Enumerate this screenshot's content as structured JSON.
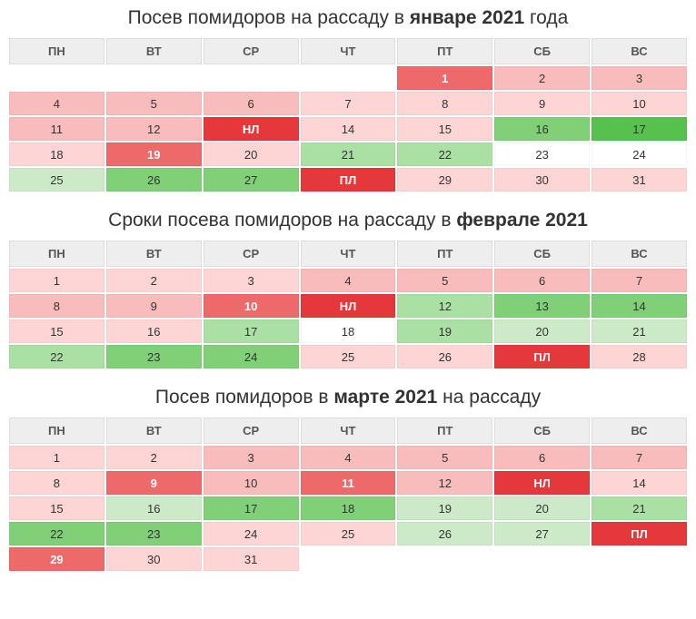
{
  "colors": {
    "header_bg": "#eeeeee",
    "header_text": "#555555",
    "title_text": "#333333",
    "cell_border": "rgba(0,0,0,0.04)"
  },
  "weekdays": [
    "ПН",
    "ВТ",
    "СР",
    "ЧТ",
    "ПТ",
    "СБ",
    "ВС"
  ],
  "palette": {
    "empty": "#ffffff",
    "white": "#ffffff",
    "pink1": "#fdd5d5",
    "pink2": "#f9bcbc",
    "pink3": "#f6a6a6",
    "red1": "#ee696a",
    "red2": "#e5383b",
    "green1": "#cceac8",
    "green2": "#abe0a5",
    "green3": "#7fd077",
    "green4": "#56c24d"
  },
  "calendars": [
    {
      "title_pre": "Посев помидоров на рассаду в ",
      "title_bold": "январе 2021",
      "title_post": " года",
      "rows": [
        [
          {
            "t": "",
            "c": "empty"
          },
          {
            "t": "",
            "c": "empty"
          },
          {
            "t": "",
            "c": "empty"
          },
          {
            "t": "",
            "c": "empty"
          },
          {
            "t": "1",
            "c": "red1",
            "lbl": true
          },
          {
            "t": "2",
            "c": "pink2"
          },
          {
            "t": "3",
            "c": "pink2"
          }
        ],
        [
          {
            "t": "4",
            "c": "pink2"
          },
          {
            "t": "5",
            "c": "pink2"
          },
          {
            "t": "6",
            "c": "pink2"
          },
          {
            "t": "7",
            "c": "pink1"
          },
          {
            "t": "8",
            "c": "pink1"
          },
          {
            "t": "9",
            "c": "pink1"
          },
          {
            "t": "10",
            "c": "pink1"
          }
        ],
        [
          {
            "t": "11",
            "c": "pink2"
          },
          {
            "t": "12",
            "c": "pink2"
          },
          {
            "t": "НЛ",
            "c": "red2",
            "lbl": true
          },
          {
            "t": "14",
            "c": "pink1"
          },
          {
            "t": "15",
            "c": "pink1"
          },
          {
            "t": "16",
            "c": "green3"
          },
          {
            "t": "17",
            "c": "green4"
          }
        ],
        [
          {
            "t": "18",
            "c": "pink1"
          },
          {
            "t": "19",
            "c": "red1",
            "lbl": true
          },
          {
            "t": "20",
            "c": "pink1"
          },
          {
            "t": "21",
            "c": "green2"
          },
          {
            "t": "22",
            "c": "green2"
          },
          {
            "t": "23",
            "c": "white"
          },
          {
            "t": "24",
            "c": "white"
          }
        ],
        [
          {
            "t": "25",
            "c": "green1"
          },
          {
            "t": "26",
            "c": "green3"
          },
          {
            "t": "27",
            "c": "green3"
          },
          {
            "t": "ПЛ",
            "c": "red2",
            "lbl": true
          },
          {
            "t": "29",
            "c": "pink1"
          },
          {
            "t": "30",
            "c": "pink1"
          },
          {
            "t": "31",
            "c": "pink1"
          }
        ]
      ]
    },
    {
      "title_pre": "Сроки посева помидоров на рассаду в ",
      "title_bold": "феврале 2021",
      "title_post": "",
      "rows": [
        [
          {
            "t": "1",
            "c": "pink1"
          },
          {
            "t": "2",
            "c": "pink1"
          },
          {
            "t": "3",
            "c": "pink1"
          },
          {
            "t": "4",
            "c": "pink2"
          },
          {
            "t": "5",
            "c": "pink2"
          },
          {
            "t": "6",
            "c": "pink2"
          },
          {
            "t": "7",
            "c": "pink2"
          }
        ],
        [
          {
            "t": "8",
            "c": "pink2"
          },
          {
            "t": "9",
            "c": "pink2"
          },
          {
            "t": "10",
            "c": "red1",
            "lbl": true
          },
          {
            "t": "НЛ",
            "c": "red2",
            "lbl": true
          },
          {
            "t": "12",
            "c": "green2"
          },
          {
            "t": "13",
            "c": "green3"
          },
          {
            "t": "14",
            "c": "green3"
          }
        ],
        [
          {
            "t": "15",
            "c": "pink1"
          },
          {
            "t": "16",
            "c": "pink1"
          },
          {
            "t": "17",
            "c": "green2"
          },
          {
            "t": "18",
            "c": "white"
          },
          {
            "t": "19",
            "c": "green2"
          },
          {
            "t": "20",
            "c": "green1"
          },
          {
            "t": "21",
            "c": "green1"
          }
        ],
        [
          {
            "t": "22",
            "c": "green2"
          },
          {
            "t": "23",
            "c": "green3"
          },
          {
            "t": "24",
            "c": "green3"
          },
          {
            "t": "25",
            "c": "pink1"
          },
          {
            "t": "26",
            "c": "pink1"
          },
          {
            "t": "ПЛ",
            "c": "red2",
            "lbl": true
          },
          {
            "t": "28",
            "c": "pink1"
          }
        ]
      ]
    },
    {
      "title_pre": "Посев помидоров в ",
      "title_bold": "марте 2021",
      "title_post": " на рассаду",
      "rows": [
        [
          {
            "t": "1",
            "c": "pink1"
          },
          {
            "t": "2",
            "c": "pink1"
          },
          {
            "t": "3",
            "c": "pink2"
          },
          {
            "t": "4",
            "c": "pink2"
          },
          {
            "t": "5",
            "c": "pink2"
          },
          {
            "t": "6",
            "c": "pink2"
          },
          {
            "t": "7",
            "c": "pink2"
          }
        ],
        [
          {
            "t": "8",
            "c": "pink1"
          },
          {
            "t": "9",
            "c": "red1",
            "lbl": true
          },
          {
            "t": "10",
            "c": "pink2"
          },
          {
            "t": "11",
            "c": "red1",
            "lbl": true
          },
          {
            "t": "12",
            "c": "pink2"
          },
          {
            "t": "НЛ",
            "c": "red2",
            "lbl": true
          },
          {
            "t": "14",
            "c": "pink1"
          }
        ],
        [
          {
            "t": "15",
            "c": "pink1"
          },
          {
            "t": "16",
            "c": "green1"
          },
          {
            "t": "17",
            "c": "green3"
          },
          {
            "t": "18",
            "c": "green3"
          },
          {
            "t": "19",
            "c": "green1"
          },
          {
            "t": "20",
            "c": "green1"
          },
          {
            "t": "21",
            "c": "green2"
          }
        ],
        [
          {
            "t": "22",
            "c": "green3"
          },
          {
            "t": "23",
            "c": "green3"
          },
          {
            "t": "24",
            "c": "pink1"
          },
          {
            "t": "25",
            "c": "pink1"
          },
          {
            "t": "26",
            "c": "green1"
          },
          {
            "t": "27",
            "c": "green1"
          },
          {
            "t": "ПЛ",
            "c": "red2",
            "lbl": true
          }
        ],
        [
          {
            "t": "29",
            "c": "red1",
            "lbl": true
          },
          {
            "t": "30",
            "c": "pink1"
          },
          {
            "t": "31",
            "c": "pink1"
          },
          {
            "t": "",
            "c": "empty"
          },
          {
            "t": "",
            "c": "empty"
          },
          {
            "t": "",
            "c": "empty"
          },
          {
            "t": "",
            "c": "empty"
          }
        ]
      ]
    }
  ]
}
